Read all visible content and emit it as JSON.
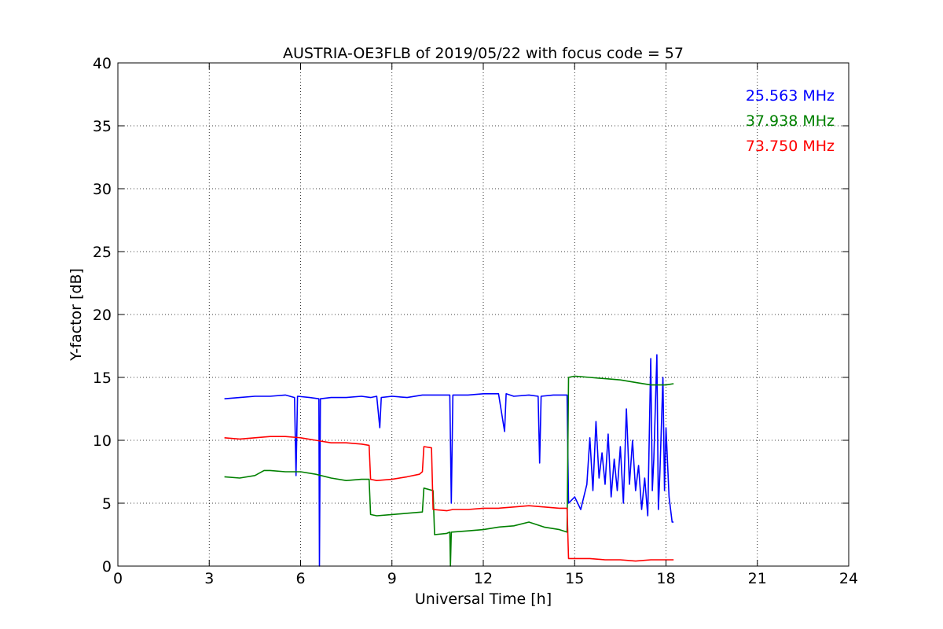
{
  "chart_data": {
    "type": "line",
    "title": "AUSTRIA-OE3FLB of 2019/05/22 with focus code = 57",
    "xlabel": "Universal Time [h]",
    "ylabel": "Y-factor [dB]",
    "xlim": [
      0,
      24
    ],
    "ylim": [
      0,
      40
    ],
    "xticks": [
      0,
      3,
      6,
      9,
      12,
      15,
      18,
      21,
      24
    ],
    "yticks": [
      0,
      5,
      10,
      15,
      20,
      25,
      30,
      35,
      40
    ],
    "grid": true,
    "legend_position": "top-right",
    "series": [
      {
        "name": "25.563 MHz",
        "color": "#0000ff",
        "points": [
          [
            3.5,
            13.3
          ],
          [
            4.0,
            13.4
          ],
          [
            4.5,
            13.5
          ],
          [
            5.0,
            13.5
          ],
          [
            5.5,
            13.6
          ],
          [
            5.8,
            13.4
          ],
          [
            5.85,
            7.2
          ],
          [
            5.9,
            13.5
          ],
          [
            6.3,
            13.4
          ],
          [
            6.6,
            13.3
          ],
          [
            6.62,
            0
          ],
          [
            6.65,
            13.3
          ],
          [
            7.0,
            13.4
          ],
          [
            7.5,
            13.4
          ],
          [
            8.0,
            13.5
          ],
          [
            8.3,
            13.4
          ],
          [
            8.5,
            13.5
          ],
          [
            8.6,
            11.0
          ],
          [
            8.65,
            13.4
          ],
          [
            9.0,
            13.5
          ],
          [
            9.5,
            13.4
          ],
          [
            10.0,
            13.6
          ],
          [
            10.5,
            13.6
          ],
          [
            10.9,
            13.6
          ],
          [
            10.95,
            5.0
          ],
          [
            11.0,
            13.6
          ],
          [
            11.5,
            13.6
          ],
          [
            12.0,
            13.7
          ],
          [
            12.5,
            13.7
          ],
          [
            12.7,
            10.7
          ],
          [
            12.75,
            13.7
          ],
          [
            13.0,
            13.5
          ],
          [
            13.5,
            13.6
          ],
          [
            13.8,
            13.5
          ],
          [
            13.85,
            8.2
          ],
          [
            13.9,
            13.5
          ],
          [
            14.3,
            13.6
          ],
          [
            14.75,
            13.6
          ],
          [
            14.8,
            5.0
          ],
          [
            15.0,
            5.5
          ],
          [
            15.2,
            4.5
          ],
          [
            15.4,
            6.5
          ],
          [
            15.5,
            10.2
          ],
          [
            15.6,
            6.0
          ],
          [
            15.7,
            11.5
          ],
          [
            15.8,
            7.0
          ],
          [
            15.9,
            9.0
          ],
          [
            16.0,
            6.5
          ],
          [
            16.1,
            10.5
          ],
          [
            16.2,
            5.5
          ],
          [
            16.3,
            8.5
          ],
          [
            16.4,
            6.0
          ],
          [
            16.5,
            9.5
          ],
          [
            16.6,
            5.0
          ],
          [
            16.7,
            12.5
          ],
          [
            16.8,
            6.5
          ],
          [
            16.9,
            10.0
          ],
          [
            17.0,
            6.0
          ],
          [
            17.1,
            8.0
          ],
          [
            17.2,
            4.5
          ],
          [
            17.3,
            7.0
          ],
          [
            17.4,
            4.0
          ],
          [
            17.5,
            16.5
          ],
          [
            17.55,
            6.0
          ],
          [
            17.6,
            8.5
          ],
          [
            17.7,
            16.8
          ],
          [
            17.75,
            4.5
          ],
          [
            17.8,
            7.5
          ],
          [
            17.9,
            15.0
          ],
          [
            17.95,
            6.0
          ],
          [
            18.0,
            11.0
          ],
          [
            18.1,
            5.5
          ],
          [
            18.2,
            3.5
          ],
          [
            18.25,
            3.5
          ]
        ]
      },
      {
        "name": "37.938 MHz",
        "color": "#008000",
        "points": [
          [
            3.5,
            7.1
          ],
          [
            4.0,
            7.0
          ],
          [
            4.5,
            7.2
          ],
          [
            4.8,
            7.6
          ],
          [
            5.0,
            7.6
          ],
          [
            5.5,
            7.5
          ],
          [
            6.0,
            7.5
          ],
          [
            6.5,
            7.3
          ],
          [
            7.0,
            7.0
          ],
          [
            7.5,
            6.8
          ],
          [
            8.0,
            6.9
          ],
          [
            8.25,
            6.9
          ],
          [
            8.3,
            4.1
          ],
          [
            8.5,
            4.0
          ],
          [
            9.0,
            4.1
          ],
          [
            9.5,
            4.2
          ],
          [
            10.0,
            4.3
          ],
          [
            10.05,
            6.2
          ],
          [
            10.35,
            6.0
          ],
          [
            10.4,
            2.5
          ],
          [
            10.8,
            2.6
          ],
          [
            10.9,
            2.7
          ],
          [
            10.92,
            0
          ],
          [
            10.95,
            2.7
          ],
          [
            11.5,
            2.8
          ],
          [
            12.0,
            2.9
          ],
          [
            12.5,
            3.1
          ],
          [
            13.0,
            3.2
          ],
          [
            13.5,
            3.5
          ],
          [
            14.0,
            3.1
          ],
          [
            14.5,
            2.9
          ],
          [
            14.75,
            2.7
          ],
          [
            14.8,
            15.0
          ],
          [
            15.0,
            15.1
          ],
          [
            15.5,
            15.0
          ],
          [
            16.0,
            14.9
          ],
          [
            16.5,
            14.8
          ],
          [
            17.0,
            14.6
          ],
          [
            17.5,
            14.4
          ],
          [
            18.0,
            14.4
          ],
          [
            18.25,
            14.5
          ]
        ]
      },
      {
        "name": "73.750 MHz",
        "color": "#ff0000",
        "points": [
          [
            3.5,
            10.2
          ],
          [
            4.0,
            10.1
          ],
          [
            4.5,
            10.2
          ],
          [
            5.0,
            10.3
          ],
          [
            5.5,
            10.3
          ],
          [
            6.0,
            10.2
          ],
          [
            6.5,
            10.0
          ],
          [
            7.0,
            9.8
          ],
          [
            7.5,
            9.8
          ],
          [
            8.0,
            9.7
          ],
          [
            8.25,
            9.6
          ],
          [
            8.3,
            6.9
          ],
          [
            8.5,
            6.8
          ],
          [
            9.0,
            6.9
          ],
          [
            9.5,
            7.1
          ],
          [
            9.9,
            7.3
          ],
          [
            10.0,
            7.5
          ],
          [
            10.05,
            9.5
          ],
          [
            10.3,
            9.4
          ],
          [
            10.35,
            4.5
          ],
          [
            10.8,
            4.4
          ],
          [
            11.0,
            4.5
          ],
          [
            11.5,
            4.5
          ],
          [
            12.0,
            4.6
          ],
          [
            12.5,
            4.6
          ],
          [
            13.0,
            4.7
          ],
          [
            13.5,
            4.8
          ],
          [
            14.0,
            4.7
          ],
          [
            14.5,
            4.6
          ],
          [
            14.75,
            4.6
          ],
          [
            14.8,
            0.6
          ],
          [
            15.0,
            0.6
          ],
          [
            15.5,
            0.6
          ],
          [
            16.0,
            0.5
          ],
          [
            16.5,
            0.5
          ],
          [
            17.0,
            0.4
          ],
          [
            17.5,
            0.5
          ],
          [
            18.0,
            0.5
          ],
          [
            18.25,
            0.5
          ]
        ]
      }
    ]
  }
}
